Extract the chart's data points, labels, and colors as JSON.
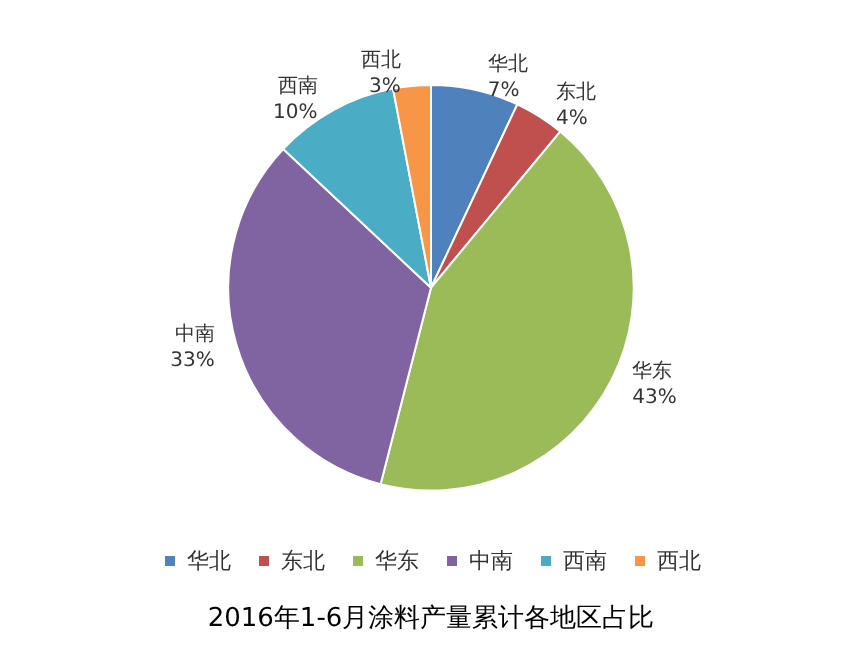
{
  "chart_data": {
    "type": "pie",
    "title": "2016年1-6月涂料产量累计各地区占比",
    "categories": [
      "华北",
      "东北",
      "华东",
      "中南",
      "西南",
      "西北"
    ],
    "values": [
      7,
      4,
      43,
      33,
      10,
      3
    ],
    "value_labels": [
      "7%",
      "4%",
      "43%",
      "33%",
      "10%",
      "3%"
    ],
    "colors": [
      "#4f81bd",
      "#c0504d",
      "#9bbb59",
      "#8064a2",
      "#4bacc6",
      "#f79646"
    ],
    "legend": "bottom"
  }
}
